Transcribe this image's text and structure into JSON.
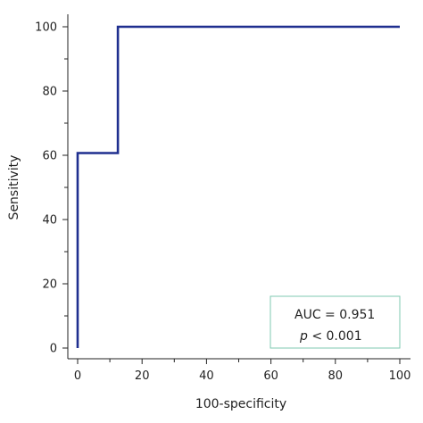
{
  "chart_data": {
    "type": "line",
    "xlabel": "100-specificity",
    "ylabel": "Sensitivity",
    "xlim": [
      0,
      100
    ],
    "ylim": [
      0,
      100
    ],
    "xticks": [
      0,
      20,
      40,
      60,
      80,
      100
    ],
    "yticks": [
      0,
      20,
      40,
      60,
      80,
      100
    ],
    "grid": false,
    "series": [
      {
        "x": [
          0,
          0,
          12.5,
          12.5,
          100
        ],
        "y": [
          0,
          60.7,
          60.7,
          100,
          100
        ],
        "color": "#1f2f8f"
      }
    ],
    "annotation": {
      "auc_text": "AUC = 0.951",
      "p_symbol": "p",
      "p_text": " < 0.001",
      "box_color": "#7fc8b0"
    }
  }
}
